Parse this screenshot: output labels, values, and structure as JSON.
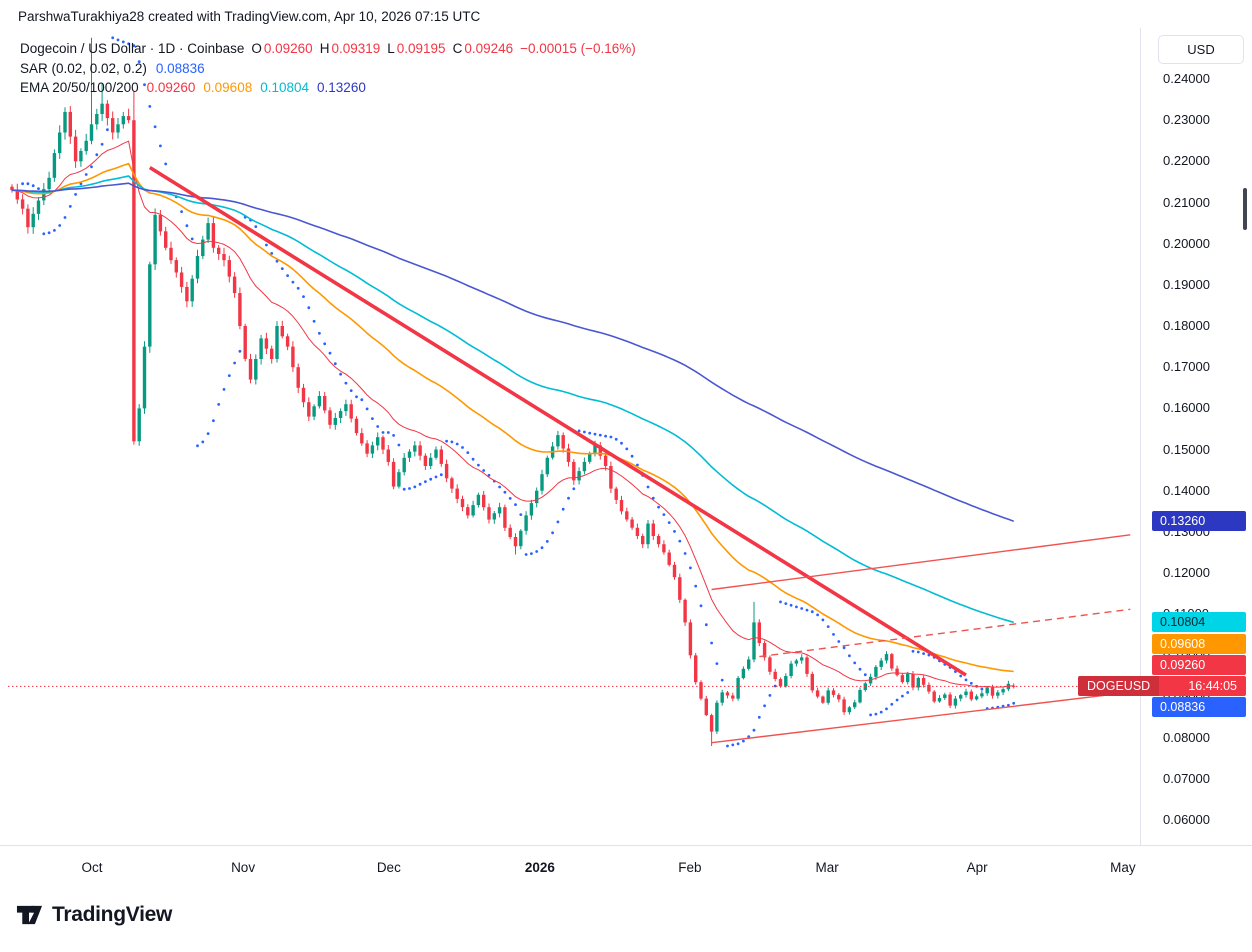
{
  "header": {
    "attribution": "ParshwaTurakhiya28 created with TradingView.com, Apr 10, 2026 07:15 UTC"
  },
  "legend": {
    "title": "Dogecoin / US Dollar · 1D · Coinbase",
    "ohlc": {
      "open_label": "O",
      "open": "0.09260",
      "high_label": "H",
      "high": "0.09319",
      "low_label": "L",
      "low": "0.09195",
      "close_label": "C",
      "close": "0.09246",
      "change": "−0.00015 (−0.16%)"
    },
    "sar": {
      "label": "SAR (0.02, 0.02, 0.2)",
      "value": "0.08836"
    },
    "ema": {
      "label": "EMA 20/50/100/200",
      "values": [
        "0.09260",
        "0.09608",
        "0.10804",
        "0.13260"
      ]
    }
  },
  "axis": {
    "currency": "USD",
    "price_labels": [
      "0.24000",
      "0.23000",
      "0.22000",
      "0.21000",
      "0.20000",
      "0.19000",
      "0.18000",
      "0.17000",
      "0.16000",
      "0.15000",
      "0.14000",
      "0.13000",
      "0.12000",
      "0.11000",
      "0.10000",
      "0.09000",
      "0.08000",
      "0.07000",
      "0.06000"
    ],
    "time_labels": [
      {
        "label": "Oct",
        "i": 15.1,
        "bold": false
      },
      {
        "label": "Nov",
        "i": 43.6,
        "bold": false
      },
      {
        "label": "Dec",
        "i": 71.1,
        "bold": false
      },
      {
        "label": "2026",
        "i": 99.6,
        "bold": true
      },
      {
        "label": "Feb",
        "i": 127.9,
        "bold": false
      },
      {
        "label": "Mar",
        "i": 153.8,
        "bold": false
      },
      {
        "label": "Apr",
        "i": 182.1,
        "bold": false
      },
      {
        "label": "May",
        "i": 209.6,
        "bold": false
      }
    ],
    "badges": [
      {
        "name": "ema200",
        "text": "0.13260",
        "price": 0.1326,
        "bg": "#2d38c2",
        "fg": "#ffffff"
      },
      {
        "name": "ema100",
        "text": "0.10804",
        "price": 0.10804,
        "bg": "#00d5e8",
        "fg": "#07262c"
      },
      {
        "name": "ema50",
        "text": "0.09608",
        "price": 0.09608,
        "bg": "#ff9800",
        "fg": "#ffffff"
      },
      {
        "name": "ema20",
        "text": "0.09260",
        "price": 0.0926,
        "bg": "#f23645",
        "fg": "#ffffff"
      },
      {
        "name": "last-price",
        "text": "DOGEUSD",
        "time": "16:44:05",
        "price": 0.09246,
        "bg": "#f23645",
        "fg": "#ffffff"
      },
      {
        "name": "sar",
        "text": "0.08836",
        "price": 0.08836,
        "bg": "#2962ff",
        "fg": "#ffffff"
      }
    ]
  },
  "footer": {
    "brand": "TradingView"
  },
  "chart_data": {
    "type": "candlestick",
    "title": "Dogecoin / US Dollar, 1D, Coinbase",
    "symbol": "DOGEUSD",
    "interval": "1D",
    "exchange": "Coinbase",
    "ylim": [
      0.0539,
      0.2524
    ],
    "y_tick_step": 0.01,
    "grid": false,
    "last_ohlc": {
      "open": 0.0926,
      "high": 0.09319,
      "low": 0.09195,
      "close": 0.09246,
      "change": -0.00015,
      "change_pct": -0.16
    },
    "last_price_line": 0.09246,
    "candles": {
      "count": 190,
      "close_anchors": [
        [
          0,
          0.213
        ],
        [
          2,
          0.2085
        ],
        [
          3,
          0.204
        ],
        [
          5,
          0.2105
        ],
        [
          7,
          0.216
        ],
        [
          8,
          0.222
        ],
        [
          10,
          0.232
        ],
        [
          12,
          0.22
        ],
        [
          14,
          0.225
        ],
        [
          15,
          0.229
        ],
        [
          17,
          0.234
        ],
        [
          19,
          0.227
        ],
        [
          21,
          0.231
        ],
        [
          22,
          0.23
        ],
        [
          23,
          0.152
        ],
        [
          24,
          0.16
        ],
        [
          25,
          0.175
        ],
        [
          26,
          0.195
        ],
        [
          27,
          0.207
        ],
        [
          29,
          0.199
        ],
        [
          31,
          0.193
        ],
        [
          33,
          0.186
        ],
        [
          35,
          0.197
        ],
        [
          37,
          0.205
        ],
        [
          38,
          0.199
        ],
        [
          40,
          0.196
        ],
        [
          42,
          0.188
        ],
        [
          44,
          0.172
        ],
        [
          45,
          0.167
        ],
        [
          47,
          0.177
        ],
        [
          49,
          0.172
        ],
        [
          50,
          0.18
        ],
        [
          52,
          0.175
        ],
        [
          54,
          0.165
        ],
        [
          56,
          0.158
        ],
        [
          58,
          0.163
        ],
        [
          60,
          0.156
        ],
        [
          63,
          0.161
        ],
        [
          65,
          0.154
        ],
        [
          67,
          0.149
        ],
        [
          69,
          0.153
        ],
        [
          71,
          0.147
        ],
        [
          72,
          0.141
        ],
        [
          74,
          0.148
        ],
        [
          76,
          0.151
        ],
        [
          78,
          0.146
        ],
        [
          80,
          0.15
        ],
        [
          82,
          0.143
        ],
        [
          84,
          0.138
        ],
        [
          86,
          0.134
        ],
        [
          88,
          0.139
        ],
        [
          90,
          0.133
        ],
        [
          92,
          0.136
        ],
        [
          93,
          0.131
        ],
        [
          95,
          0.1265
        ],
        [
          97,
          0.134
        ],
        [
          99,
          0.14
        ],
        [
          101,
          0.148
        ],
        [
          103,
          0.1535
        ],
        [
          105,
          0.147
        ],
        [
          106,
          0.1425
        ],
        [
          108,
          0.147
        ],
        [
          110,
          0.151
        ],
        [
          112,
          0.146
        ],
        [
          113,
          0.1405
        ],
        [
          115,
          0.135
        ],
        [
          117,
          0.131
        ],
        [
          119,
          0.127
        ],
        [
          120,
          0.132
        ],
        [
          121,
          0.129
        ],
        [
          123,
          0.125
        ],
        [
          125,
          0.119
        ],
        [
          126,
          0.1135
        ],
        [
          127,
          0.108
        ],
        [
          128,
          0.1
        ],
        [
          129,
          0.0935
        ],
        [
          131,
          0.0855
        ],
        [
          132,
          0.0815
        ],
        [
          133,
          0.0885
        ],
        [
          134,
          0.091
        ],
        [
          136,
          0.0895
        ],
        [
          137,
          0.0945
        ],
        [
          139,
          0.099
        ],
        [
          140,
          0.108
        ],
        [
          141,
          0.103
        ],
        [
          142,
          0.0995
        ],
        [
          143,
          0.096
        ],
        [
          145,
          0.0925
        ],
        [
          146,
          0.095
        ],
        [
          147,
          0.098
        ],
        [
          149,
          0.0995
        ],
        [
          150,
          0.0955
        ],
        [
          151,
          0.0915
        ],
        [
          153,
          0.0885
        ],
        [
          154,
          0.0915
        ],
        [
          156,
          0.0893
        ],
        [
          157,
          0.0862
        ],
        [
          159,
          0.0886
        ],
        [
          160,
          0.0916
        ],
        [
          162,
          0.0948
        ],
        [
          163,
          0.0972
        ],
        [
          165,
          0.1003
        ],
        [
          166,
          0.0968
        ],
        [
          167,
          0.0952
        ],
        [
          168,
          0.0935
        ],
        [
          169,
          0.0955
        ],
        [
          170,
          0.0922
        ],
        [
          171,
          0.0945
        ],
        [
          173,
          0.0912
        ],
        [
          174,
          0.0888
        ],
        [
          176,
          0.0905
        ],
        [
          177,
          0.0878
        ],
        [
          178,
          0.0895
        ],
        [
          180,
          0.0912
        ],
        [
          181,
          0.0893
        ],
        [
          183,
          0.0908
        ],
        [
          184,
          0.0922
        ],
        [
          185,
          0.0902
        ],
        [
          187,
          0.0918
        ],
        [
          188,
          0.0931
        ],
        [
          189,
          0.09246
        ]
      ],
      "wick_overrides": {
        "15": {
          "high": 0.25
        },
        "17": {
          "high": 0.239
        },
        "23": {
          "high": 0.237
        },
        "95": {
          "low": 0.1245
        },
        "132": {
          "low": 0.078
        },
        "140": {
          "high": 0.113
        },
        "165": {
          "high": 0.101
        }
      }
    },
    "indicators": {
      "sar": {
        "label": "SAR (0.02, 0.02, 0.2)",
        "start": 0.02,
        "step": 0.02,
        "max": 0.2,
        "last_value": 0.08836
      },
      "emas": [
        {
          "period": 20,
          "last_value": 0.0926
        },
        {
          "period": 50,
          "last_value": 0.09608
        },
        {
          "period": 100,
          "last_value": 0.10804
        },
        {
          "period": 200,
          "last_value": 0.1326
        }
      ]
    },
    "trendlines": [
      {
        "name": "primary-downtrend",
        "i1": 26,
        "p1": 0.2185,
        "i2": 180,
        "p2": 0.0952,
        "width": 3.6,
        "dash": null,
        "color": "#f23645"
      },
      {
        "name": "wedge-upper",
        "i1": 132,
        "p1": 0.116,
        "i2": 211,
        "p2": 0.1293,
        "width": 1.4,
        "dash": null,
        "color": "#ef5350"
      },
      {
        "name": "wedge-lower",
        "i1": 132,
        "p1": 0.0788,
        "i2": 212,
        "p2": 0.0912,
        "width": 1.4,
        "dash": null,
        "color": "#ef5350"
      },
      {
        "name": "projection-dashed",
        "i1": 141,
        "p1": 0.0997,
        "i2": 211,
        "p2": 0.1112,
        "width": 1.4,
        "dash": "7,5",
        "color": "#ef5350"
      }
    ],
    "colors": {
      "up": "#089981",
      "down": "#f23645",
      "ema20": "#f23645",
      "ema50": "#ff9800",
      "ema100": "#00bcd4",
      "ema200": "#2d38c2",
      "ema200_line": "#4a57d2",
      "sar": "#2962ff",
      "price_line": "#f23645",
      "axis_text": "#131722"
    }
  }
}
